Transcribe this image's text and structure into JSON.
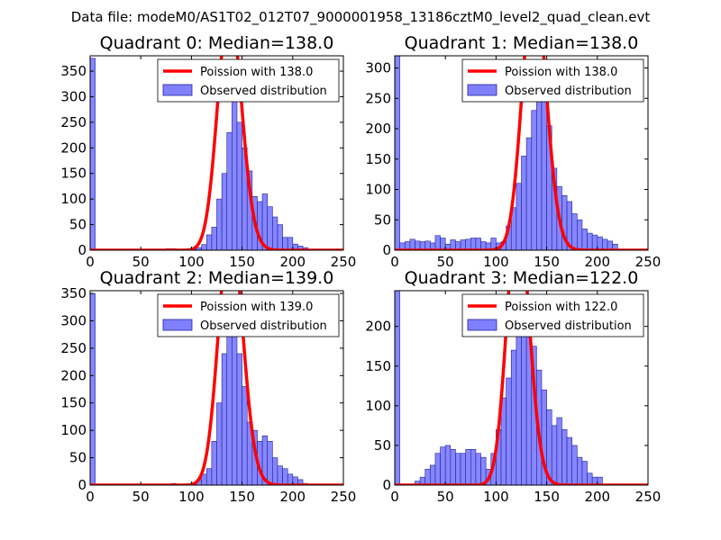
{
  "suptitle": "Data file: modeM0/AS1T02_012T07_9000001958_13186cztM0_level2_quad_clean.evt",
  "colors": {
    "hist_fill": "#8080ff",
    "hist_edge": "#2020a0",
    "poisson_line": "#ff0000",
    "axes": "#000000",
    "background": "#ffffff"
  },
  "chart_data": [
    {
      "type": "bar",
      "title": "Quadrant 0: Median=138.0",
      "xlim": [
        0,
        250
      ],
      "ylim": [
        0,
        380
      ],
      "xticks": [
        0,
        50,
        100,
        150,
        200,
        250
      ],
      "yticks": [
        0,
        50,
        100,
        150,
        200,
        250,
        300,
        350
      ],
      "bin_width": 5,
      "legend_position": "top-right",
      "legend": [
        "Poission with 138.0",
        "Observed distribution"
      ],
      "poisson_mean": 138.0,
      "poisson_scale": 14000,
      "bins": [
        [
          0,
          375
        ],
        [
          75,
          3
        ],
        [
          80,
          3
        ],
        [
          90,
          1
        ],
        [
          95,
          3
        ],
        [
          100,
          2
        ],
        [
          105,
          5
        ],
        [
          110,
          11
        ],
        [
          115,
          30
        ],
        [
          120,
          45
        ],
        [
          125,
          100
        ],
        [
          130,
          150
        ],
        [
          135,
          230
        ],
        [
          140,
          340
        ],
        [
          145,
          250
        ],
        [
          150,
          200
        ],
        [
          155,
          155
        ],
        [
          160,
          105
        ],
        [
          165,
          95
        ],
        [
          170,
          110
        ],
        [
          175,
          85
        ],
        [
          180,
          65
        ],
        [
          185,
          50
        ],
        [
          190,
          25
        ],
        [
          195,
          25
        ],
        [
          200,
          12
        ],
        [
          205,
          8
        ],
        [
          210,
          5
        ],
        [
          215,
          2
        ]
      ]
    },
    {
      "type": "bar",
      "title": "Quadrant 1: Median=138.0",
      "xlim": [
        0,
        250
      ],
      "ylim": [
        0,
        320
      ],
      "xticks": [
        0,
        50,
        100,
        150,
        200,
        250
      ],
      "yticks": [
        0,
        50,
        100,
        150,
        200,
        250,
        300
      ],
      "bin_width": 5,
      "legend_position": "top-right",
      "legend": [
        "Poission with 138.0",
        "Observed distribution"
      ],
      "poisson_mean": 138.0,
      "poisson_scale": 13000,
      "bins": [
        [
          0,
          320
        ],
        [
          5,
          12
        ],
        [
          10,
          14
        ],
        [
          15,
          18
        ],
        [
          20,
          15
        ],
        [
          25,
          14
        ],
        [
          30,
          15
        ],
        [
          35,
          12
        ],
        [
          40,
          24
        ],
        [
          45,
          20
        ],
        [
          50,
          10
        ],
        [
          55,
          17
        ],
        [
          60,
          14
        ],
        [
          65,
          17
        ],
        [
          70,
          18
        ],
        [
          75,
          20
        ],
        [
          80,
          20
        ],
        [
          85,
          14
        ],
        [
          90,
          12
        ],
        [
          95,
          20
        ],
        [
          100,
          12
        ],
        [
          105,
          14
        ],
        [
          110,
          40
        ],
        [
          115,
          70
        ],
        [
          120,
          110
        ],
        [
          125,
          155
        ],
        [
          130,
          185
        ],
        [
          135,
          230
        ],
        [
          140,
          265
        ],
        [
          145,
          250
        ],
        [
          150,
          205
        ],
        [
          155,
          135
        ],
        [
          160,
          105
        ],
        [
          165,
          90
        ],
        [
          170,
          80
        ],
        [
          175,
          60
        ],
        [
          180,
          50
        ],
        [
          185,
          35
        ],
        [
          190,
          28
        ],
        [
          195,
          25
        ],
        [
          200,
          22
        ],
        [
          205,
          18
        ],
        [
          210,
          15
        ],
        [
          215,
          10
        ]
      ]
    },
    {
      "type": "bar",
      "title": "Quadrant 2: Median=139.0",
      "xlim": [
        0,
        250
      ],
      "ylim": [
        0,
        355
      ],
      "xticks": [
        0,
        50,
        100,
        150,
        200,
        250
      ],
      "yticks": [
        0,
        50,
        100,
        150,
        200,
        250,
        300,
        350
      ],
      "bin_width": 5,
      "legend_position": "top-right",
      "legend": [
        "Poission with 139.0",
        "Observed distribution"
      ],
      "poisson_mean": 139.0,
      "poisson_scale": 14000,
      "bins": [
        [
          0,
          350
        ],
        [
          80,
          3
        ],
        [
          100,
          3
        ],
        [
          105,
          10
        ],
        [
          110,
          20
        ],
        [
          115,
          30
        ],
        [
          120,
          80
        ],
        [
          125,
          150
        ],
        [
          130,
          240
        ],
        [
          135,
          280
        ],
        [
          140,
          330
        ],
        [
          145,
          240
        ],
        [
          150,
          180
        ],
        [
          155,
          115
        ],
        [
          160,
          100
        ],
        [
          165,
          80
        ],
        [
          170,
          90
        ],
        [
          175,
          80
        ],
        [
          180,
          50
        ],
        [
          185,
          35
        ],
        [
          190,
          30
        ],
        [
          195,
          20
        ],
        [
          200,
          15
        ],
        [
          205,
          10
        ],
        [
          210,
          3
        ]
      ]
    },
    {
      "type": "bar",
      "title": "Quadrant 3: Median=122.0",
      "xlim": [
        0,
        250
      ],
      "ylim": [
        0,
        245
      ],
      "xticks": [
        0,
        50,
        100,
        150,
        200,
        250
      ],
      "yticks": [
        0,
        50,
        100,
        150,
        200
      ],
      "bin_width": 5,
      "legend_position": "top-right",
      "legend": [
        "Poission with 122.0",
        "Observed distribution"
      ],
      "poisson_mean": 122.0,
      "poisson_scale": 9500,
      "bins": [
        [
          0,
          245
        ],
        [
          20,
          5
        ],
        [
          25,
          10
        ],
        [
          30,
          20
        ],
        [
          35,
          25
        ],
        [
          40,
          40
        ],
        [
          45,
          48
        ],
        [
          50,
          50
        ],
        [
          55,
          45
        ],
        [
          60,
          40
        ],
        [
          65,
          40
        ],
        [
          70,
          45
        ],
        [
          75,
          45
        ],
        [
          80,
          40
        ],
        [
          85,
          35
        ],
        [
          90,
          20
        ],
        [
          95,
          40
        ],
        [
          100,
          70
        ],
        [
          105,
          110
        ],
        [
          110,
          135
        ],
        [
          115,
          170
        ],
        [
          120,
          215
        ],
        [
          125,
          240
        ],
        [
          130,
          195
        ],
        [
          135,
          175
        ],
        [
          140,
          145
        ],
        [
          145,
          120
        ],
        [
          150,
          95
        ],
        [
          155,
          75
        ],
        [
          160,
          85
        ],
        [
          165,
          70
        ],
        [
          170,
          60
        ],
        [
          175,
          50
        ],
        [
          180,
          35
        ],
        [
          185,
          30
        ],
        [
          190,
          15
        ],
        [
          195,
          10
        ],
        [
          200,
          10
        ]
      ]
    }
  ]
}
